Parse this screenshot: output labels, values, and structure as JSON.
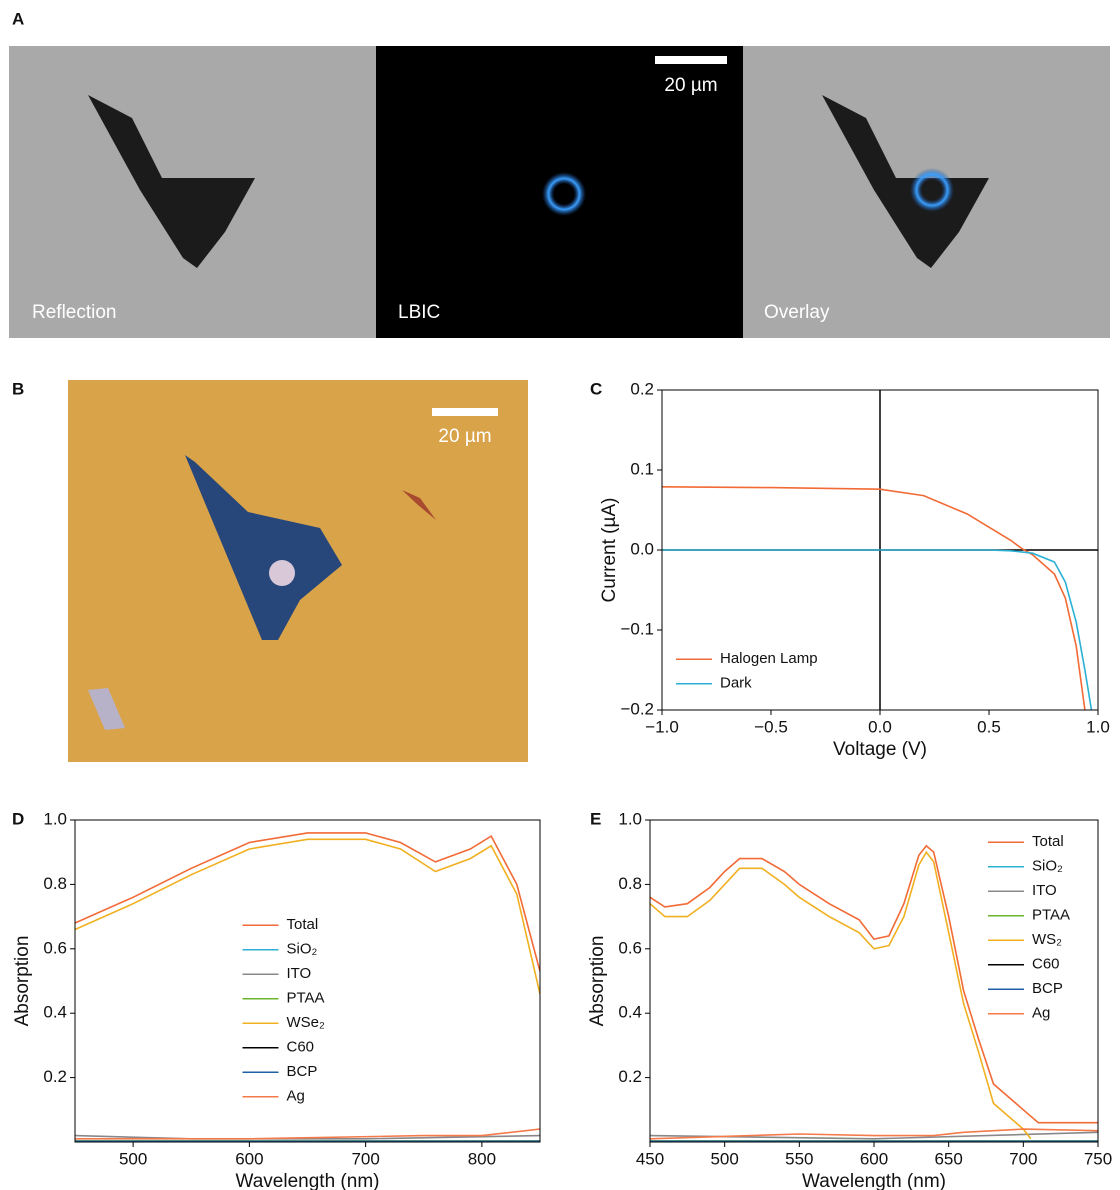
{
  "panel_a": {
    "label": "A",
    "captions": [
      "Reflection",
      "LBIC",
      "Overlay"
    ],
    "scale_bar": "20 µm"
  },
  "panel_b": {
    "label": "B",
    "scale_bar": "20 µm"
  },
  "chart_data": [
    {
      "type": "line",
      "panel": "C",
      "xlabel": "Voltage (V)",
      "ylabel": "Current (µA)",
      "xlim": [
        -1,
        1
      ],
      "ylim": [
        -0.2,
        0.2
      ],
      "xticks": [
        {
          "value": -1,
          "label": "−1.0"
        },
        {
          "value": -0.5,
          "label": "−0.5"
        },
        {
          "value": 0,
          "label": "0.0"
        },
        0.5,
        {
          "value": 1,
          "label": "1.0"
        }
      ],
      "yticks": [
        {
          "value": -0.2,
          "label": "−0.2"
        },
        {
          "value": -0.1,
          "label": "−0.1"
        },
        {
          "value": 0,
          "label": "0.0"
        },
        0.1,
        0.2
      ],
      "zero_lines": true,
      "legend": "lower left",
      "series": [
        {
          "name": "Halogen Lamp",
          "color": "#f26a35",
          "x": [
            -1,
            -0.5,
            0,
            0.2,
            0.4,
            0.6,
            0.65,
            0.7,
            0.8,
            0.85,
            0.9,
            0.94
          ],
          "values": [
            0.079,
            0.078,
            0.076,
            0.068,
            0.045,
            0.012,
            0.002,
            -0.006,
            -0.03,
            -0.06,
            -0.12,
            -0.2
          ]
        },
        {
          "name": "Dark",
          "color": "#2ab0d4",
          "x": [
            -1,
            0.5,
            0.6,
            0.7,
            0.8,
            0.85,
            0.9,
            0.94,
            0.97
          ],
          "values": [
            0,
            0,
            -0.001,
            -0.004,
            -0.015,
            -0.04,
            -0.09,
            -0.15,
            -0.2
          ]
        }
      ]
    },
    {
      "type": "line",
      "panel": "D",
      "xlabel": "Wavelength (nm)",
      "ylabel": "Absorption",
      "xlim": [
        450,
        850
      ],
      "ylim": [
        0,
        1
      ],
      "xticks": [
        500,
        600,
        700,
        800
      ],
      "yticks": [
        0.2,
        0.4,
        0.6,
        0.8,
        {
          "value": 1,
          "label": "1.0"
        }
      ],
      "legend": "center",
      "series": [
        {
          "name": "Total",
          "color": "#f26a35",
          "x": [
            450,
            500,
            550,
            600,
            650,
            700,
            730,
            760,
            790,
            808,
            830,
            850
          ],
          "values": [
            0.68,
            0.76,
            0.85,
            0.93,
            0.96,
            0.96,
            0.93,
            0.87,
            0.91,
            0.95,
            0.8,
            0.53
          ]
        },
        {
          "name": "SiO₂",
          "color": "#2ab0d4",
          "x": [
            450,
            850
          ],
          "values": [
            0.003,
            0.003
          ]
        },
        {
          "name": "ITO",
          "color": "#888888",
          "x": [
            450,
            550,
            700,
            850
          ],
          "values": [
            0.02,
            0.01,
            0.01,
            0.02
          ]
        },
        {
          "name": "PTAA",
          "color": "#6ab42d",
          "x": [
            450,
            850
          ],
          "values": [
            0.003,
            0.003
          ]
        },
        {
          "name": "WSe₂",
          "color": "#f0b020",
          "x": [
            450,
            500,
            550,
            600,
            650,
            700,
            730,
            760,
            790,
            808,
            830,
            850
          ],
          "values": [
            0.66,
            0.74,
            0.83,
            0.91,
            0.94,
            0.94,
            0.91,
            0.84,
            0.88,
            0.92,
            0.77,
            0.46
          ]
        },
        {
          "name": "C60",
          "color": "#000000",
          "x": [
            450,
            850
          ],
          "values": [
            0.002,
            0.002
          ]
        },
        {
          "name": "BCP",
          "color": "#1f5fa6",
          "x": [
            450,
            850
          ],
          "values": [
            0.002,
            0.002
          ]
        },
        {
          "name": "Ag",
          "color": "#f47a4a",
          "x": [
            450,
            600,
            750,
            800,
            850
          ],
          "values": [
            0.01,
            0.01,
            0.02,
            0.02,
            0.04
          ]
        }
      ]
    },
    {
      "type": "line",
      "panel": "E",
      "xlabel": "Wavelength (nm)",
      "ylabel": "Absorption",
      "xlim": [
        450,
        750
      ],
      "ylim": [
        0,
        1
      ],
      "xticks": [
        450,
        500,
        550,
        600,
        650,
        700,
        750
      ],
      "yticks": [
        0.2,
        0.4,
        0.6,
        0.8,
        {
          "value": 1,
          "label": "1.0"
        }
      ],
      "legend": "upper right",
      "series": [
        {
          "name": "Total",
          "color": "#f26a35",
          "x": [
            450,
            460,
            475,
            490,
            500,
            510,
            525,
            540,
            550,
            570,
            590,
            600,
            610,
            620,
            630,
            635,
            640,
            650,
            660,
            670,
            680,
            700,
            710,
            750
          ],
          "values": [
            0.76,
            0.73,
            0.74,
            0.79,
            0.84,
            0.88,
            0.88,
            0.84,
            0.8,
            0.74,
            0.69,
            0.63,
            0.64,
            0.74,
            0.89,
            0.92,
            0.9,
            0.7,
            0.47,
            0.32,
            0.18,
            0.1,
            0.06,
            0.06
          ]
        },
        {
          "name": "SiO₂",
          "color": "#2ab0d4",
          "x": [
            450,
            750
          ],
          "values": [
            0.003,
            0.003
          ]
        },
        {
          "name": "ITO",
          "color": "#888888",
          "x": [
            450,
            600,
            750
          ],
          "values": [
            0.02,
            0.01,
            0.03
          ]
        },
        {
          "name": "PTAA",
          "color": "#6ab42d",
          "x": [
            450,
            750
          ],
          "values": [
            0.003,
            0.003
          ]
        },
        {
          "name": "WS₂",
          "color": "#f0b020",
          "x": [
            450,
            460,
            475,
            490,
            500,
            510,
            525,
            540,
            550,
            570,
            590,
            600,
            610,
            620,
            630,
            635,
            640,
            650,
            660,
            670,
            680,
            700,
            705
          ],
          "values": [
            0.74,
            0.7,
            0.7,
            0.75,
            0.8,
            0.85,
            0.85,
            0.8,
            0.76,
            0.7,
            0.65,
            0.6,
            0.61,
            0.7,
            0.86,
            0.9,
            0.87,
            0.65,
            0.43,
            0.28,
            0.12,
            0.04,
            0.01
          ]
        },
        {
          "name": "C60",
          "color": "#000000",
          "x": [
            450,
            750
          ],
          "values": [
            0.002,
            0.002
          ]
        },
        {
          "name": "BCP",
          "color": "#1f5fa6",
          "x": [
            450,
            750
          ],
          "values": [
            0.002,
            0.002
          ]
        },
        {
          "name": "Ag",
          "color": "#f47a4a",
          "x": [
            450,
            550,
            600,
            640,
            660,
            700,
            750
          ],
          "values": [
            0.01,
            0.025,
            0.02,
            0.02,
            0.03,
            0.04,
            0.035
          ]
        }
      ]
    }
  ]
}
